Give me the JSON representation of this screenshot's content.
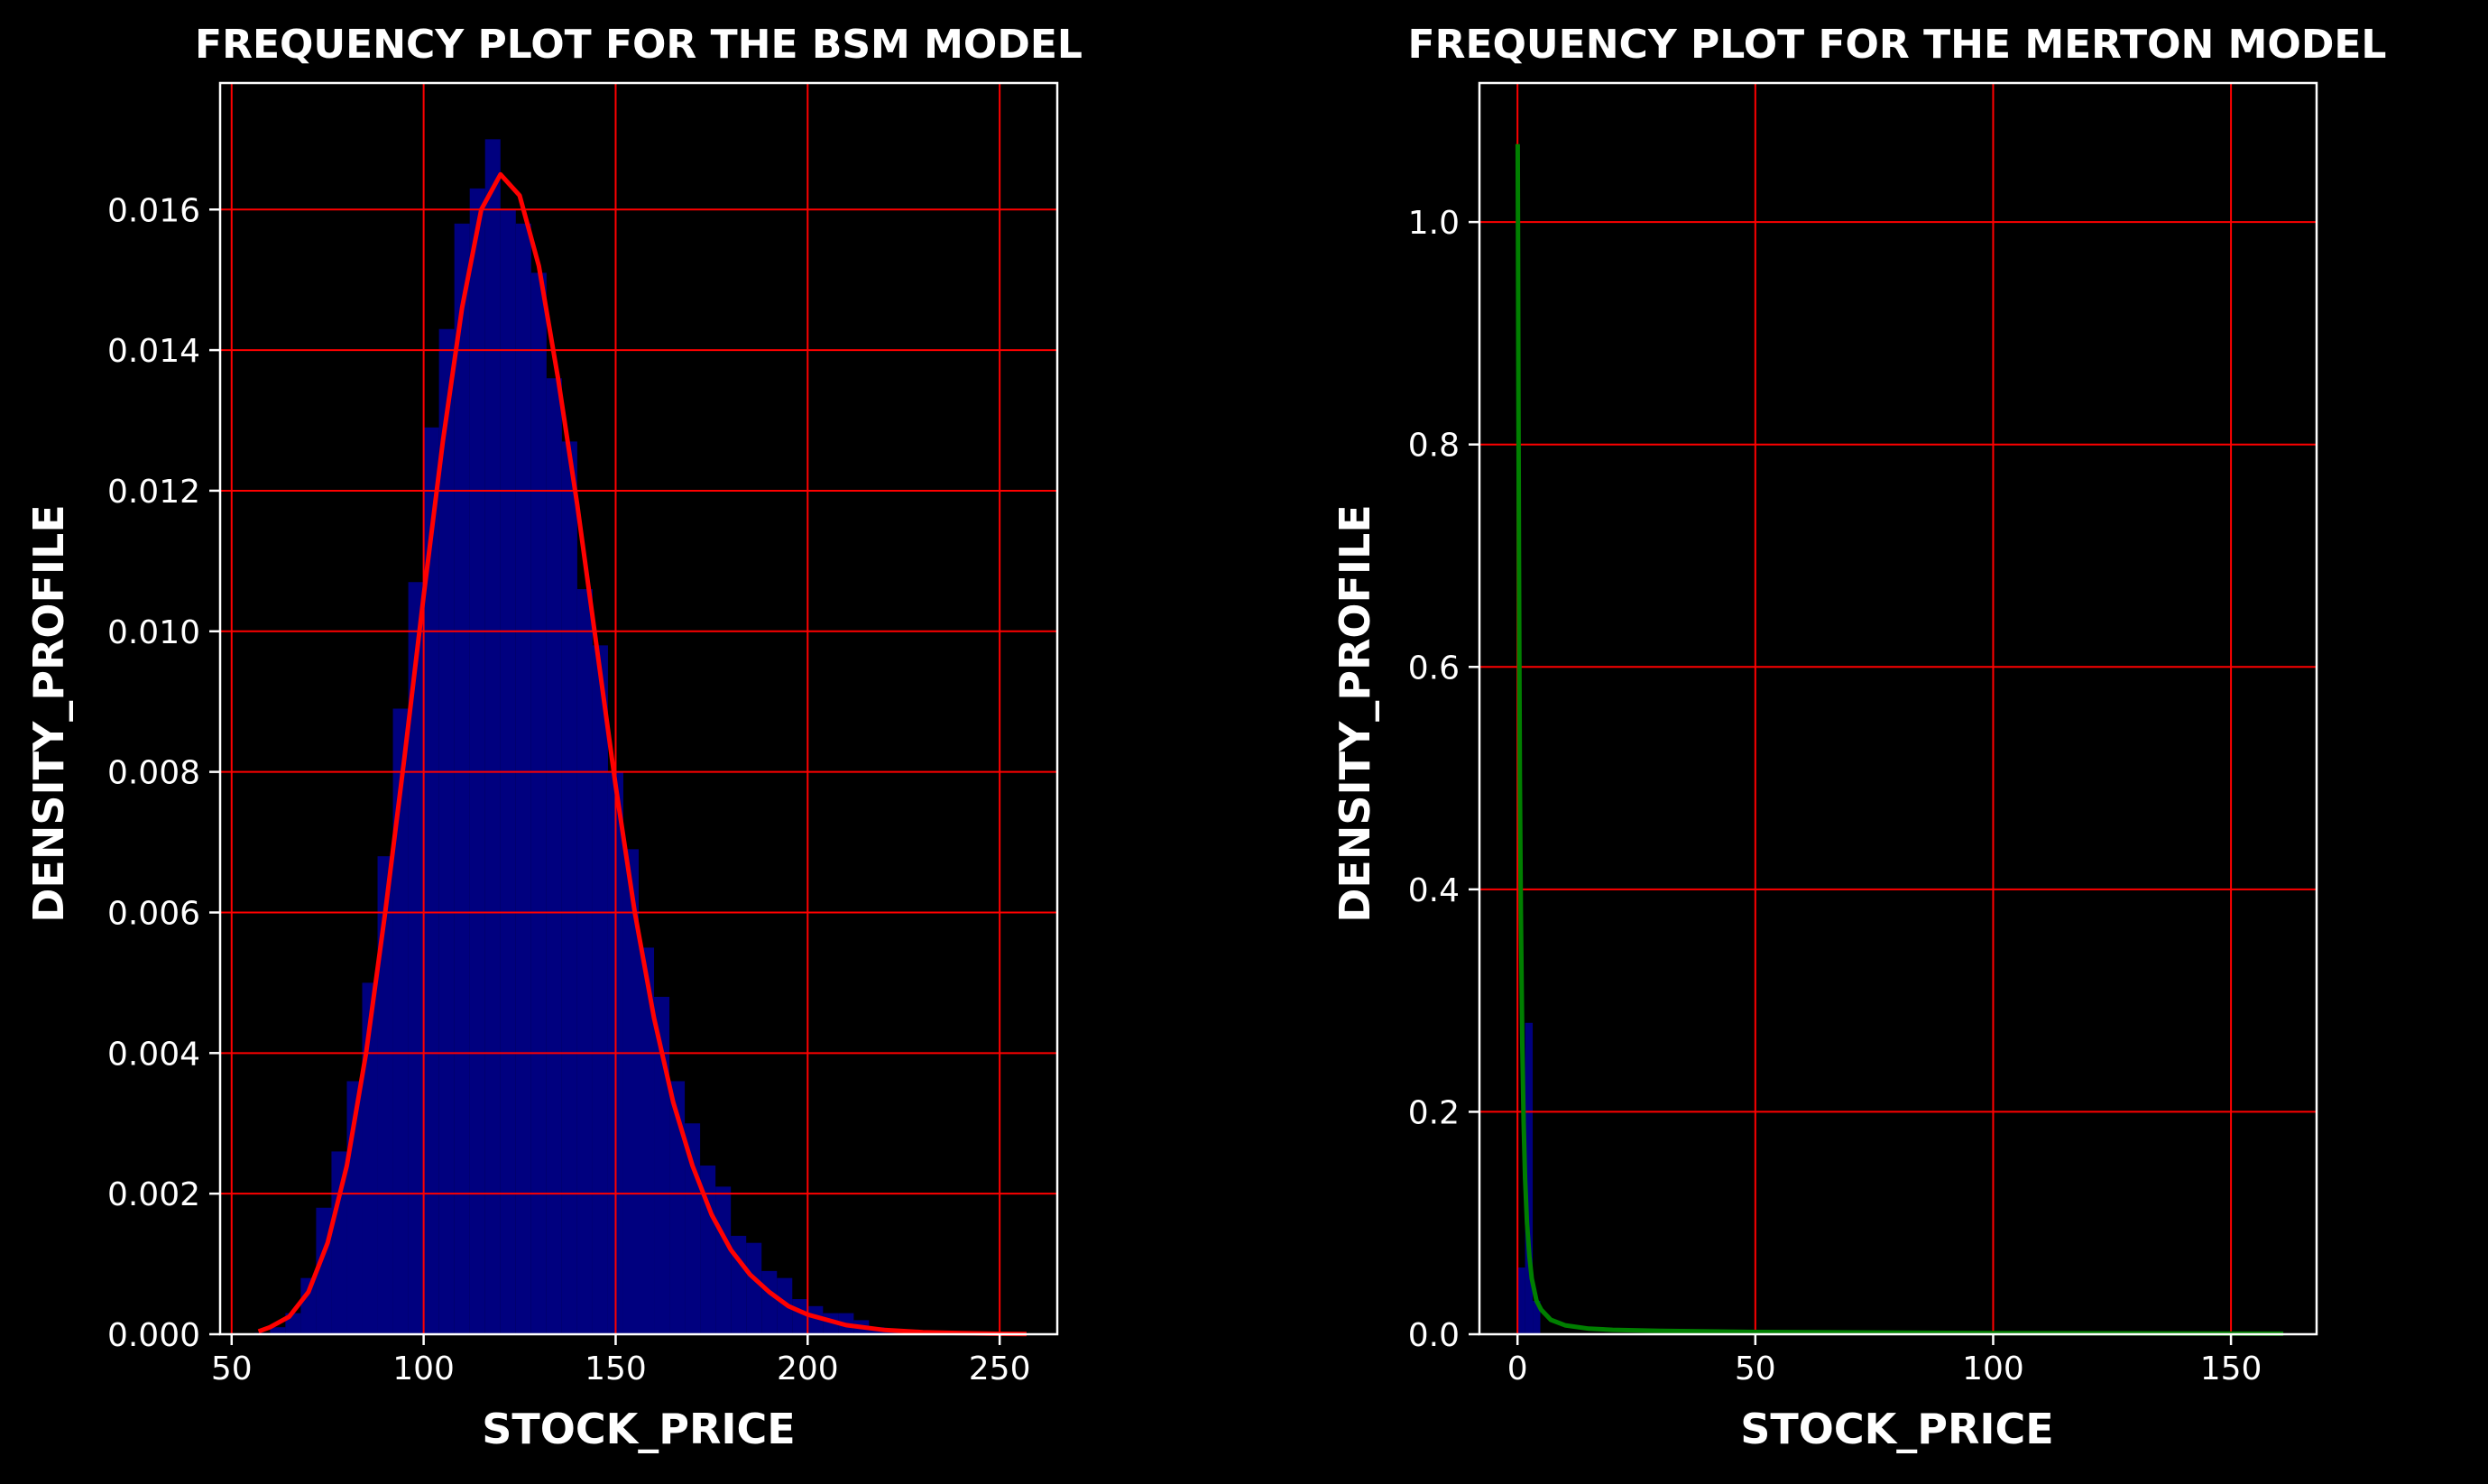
{
  "figure": {
    "background": "#000000",
    "grid_color": "#ff0000",
    "axes_color": "#ffffff"
  },
  "chart_data": [
    {
      "type": "histogram+line",
      "title": "FREQUENCY PLOT FOR  THE BSM MODEL",
      "xlabel": "STOCK_PRICE",
      "ylabel": "DENSITY_PROFILE",
      "xlim": [
        47,
        265
      ],
      "ylim": [
        0,
        0.0178
      ],
      "xticks": [
        50,
        100,
        150,
        200,
        250
      ],
      "yticks": [
        0,
        0.002,
        0.004,
        0.006,
        0.008,
        0.01,
        0.012,
        0.014,
        0.016
      ],
      "ytick_labels": [
        "0.000",
        "0.002",
        "0.004",
        "0.006",
        "0.008",
        "0.010",
        "0.012",
        "0.014",
        "0.016"
      ],
      "grid": true,
      "hist_color": "#00007f",
      "curve_color": "#ff0000",
      "bin_width": 4,
      "histogram": {
        "x": [
          58,
          62,
          66,
          70,
          74,
          78,
          82,
          86,
          90,
          94,
          98,
          102,
          106,
          110,
          114,
          118,
          122,
          126,
          130,
          134,
          138,
          142,
          146,
          150,
          154,
          158,
          162,
          166,
          170,
          174,
          178,
          182,
          186,
          190,
          194,
          198,
          202,
          206,
          210,
          214,
          218,
          222
        ],
        "values": [
          2e-05,
          0.0001,
          0.0003,
          0.0008,
          0.0018,
          0.0026,
          0.0036,
          0.005,
          0.0068,
          0.0089,
          0.0107,
          0.0129,
          0.0143,
          0.0158,
          0.0163,
          0.017,
          0.016,
          0.0158,
          0.0151,
          0.0136,
          0.0127,
          0.0106,
          0.0098,
          0.008,
          0.0069,
          0.0055,
          0.0048,
          0.0036,
          0.003,
          0.0024,
          0.0021,
          0.0014,
          0.0013,
          0.0009,
          0.0008,
          0.0005,
          0.0004,
          0.0003,
          0.0003,
          0.0002,
          0.0001,
          5e-05
        ]
      },
      "curve": {
        "x": [
          57,
          60,
          65,
          70,
          75,
          80,
          85,
          90,
          95,
          100,
          105,
          110,
          115,
          120,
          125,
          130,
          135,
          140,
          145,
          150,
          155,
          160,
          165,
          170,
          175,
          180,
          185,
          190,
          195,
          200,
          210,
          220,
          230,
          240,
          250,
          257
        ],
        "y": [
          4e-05,
          0.0001,
          0.00025,
          0.0006,
          0.0013,
          0.0024,
          0.004,
          0.006,
          0.0082,
          0.0105,
          0.0127,
          0.0146,
          0.016,
          0.0165,
          0.0162,
          0.0152,
          0.0136,
          0.0118,
          0.0098,
          0.0078,
          0.006,
          0.0045,
          0.0033,
          0.0024,
          0.0017,
          0.0012,
          0.00085,
          0.0006,
          0.0004,
          0.00028,
          0.00013,
          6e-05,
          3e-05,
          1.5e-05,
          7e-06,
          4e-06
        ]
      }
    },
    {
      "type": "histogram+line",
      "title": "FREQUENCY PLOT FOR  THE MERTON MODEL",
      "xlabel": "STOCK_PRICE",
      "ylabel": "DENSITY_PROFILE",
      "xlim": [
        -8,
        168
      ],
      "ylim": [
        0,
        1.125
      ],
      "xticks": [
        0,
        50,
        100,
        150
      ],
      "yticks": [
        0,
        0.2,
        0.4,
        0.6,
        0.8,
        1.0
      ],
      "ytick_labels": [
        "0.0",
        "0.2",
        "0.4",
        "0.6",
        "0.8",
        "1.0"
      ],
      "grid": true,
      "hist_color": "#00007f",
      "curve_color": "#007f00",
      "bin_width": 1.6,
      "histogram": {
        "x": [
          0.8,
          2.4,
          4.0
        ],
        "values": [
          0.06,
          0.28,
          0.03
        ]
      },
      "curve": {
        "x": [
          0.05,
          0.1,
          0.2,
          0.3,
          0.5,
          0.7,
          1,
          1.3,
          1.6,
          2,
          2.5,
          3,
          4,
          5,
          7,
          10,
          15,
          20,
          30,
          50,
          80,
          100,
          130,
          161
        ],
        "y": [
          1.07,
          1.0,
          0.85,
          0.7,
          0.5,
          0.38,
          0.26,
          0.19,
          0.14,
          0.1,
          0.07,
          0.05,
          0.03,
          0.022,
          0.013,
          0.008,
          0.005,
          0.004,
          0.003,
          0.002,
          0.0015,
          0.001,
          0.0008,
          0.0005
        ]
      }
    }
  ]
}
